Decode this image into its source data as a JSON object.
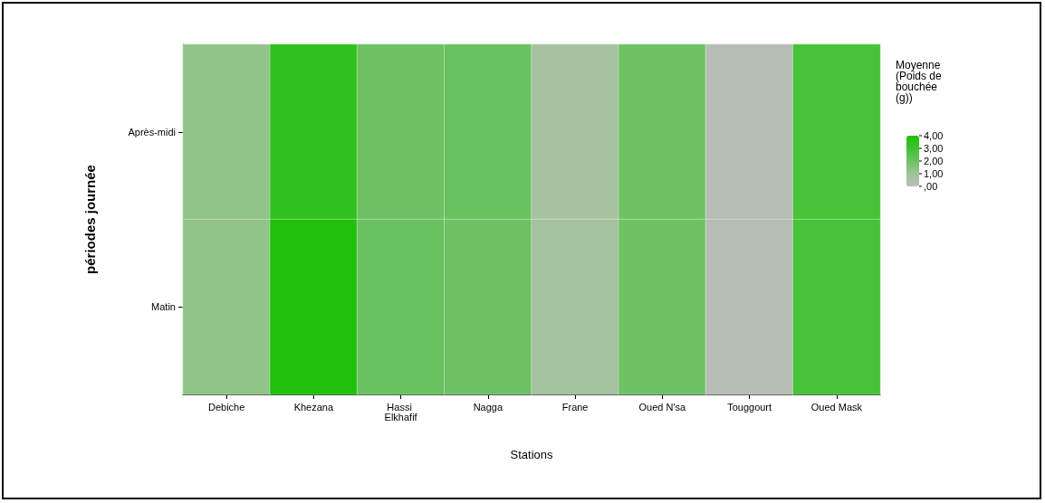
{
  "chart_data": {
    "type": "heatmap",
    "xlabel": "Stations",
    "ylabel": "périodes journée",
    "clabel": "Moyenne (Poids de bouchée (g))",
    "categories": [
      "Debiche",
      "Khezana",
      "Hassi Elkhafif",
      "Nagga",
      "Frane",
      "Oued N'sa",
      "Touggourt",
      "Oued Mask"
    ],
    "y_categories": [
      "Après-midi",
      "Matin"
    ],
    "cells": [
      [
        1.3,
        3.5,
        2.0,
        2.1,
        0.8,
        2.0,
        0.2,
        2.8
      ],
      [
        1.3,
        4.0,
        2.1,
        2.0,
        0.9,
        2.0,
        0.2,
        2.8
      ]
    ],
    "clim": [
      0,
      4
    ],
    "cticks": [
      {
        "value": 4,
        "label": "4,00"
      },
      {
        "value": 3,
        "label": "3,00"
      },
      {
        "value": 2,
        "label": "2,00"
      },
      {
        "value": 1,
        "label": "1,00"
      },
      {
        "value": 0,
        "label": ",00"
      }
    ]
  }
}
